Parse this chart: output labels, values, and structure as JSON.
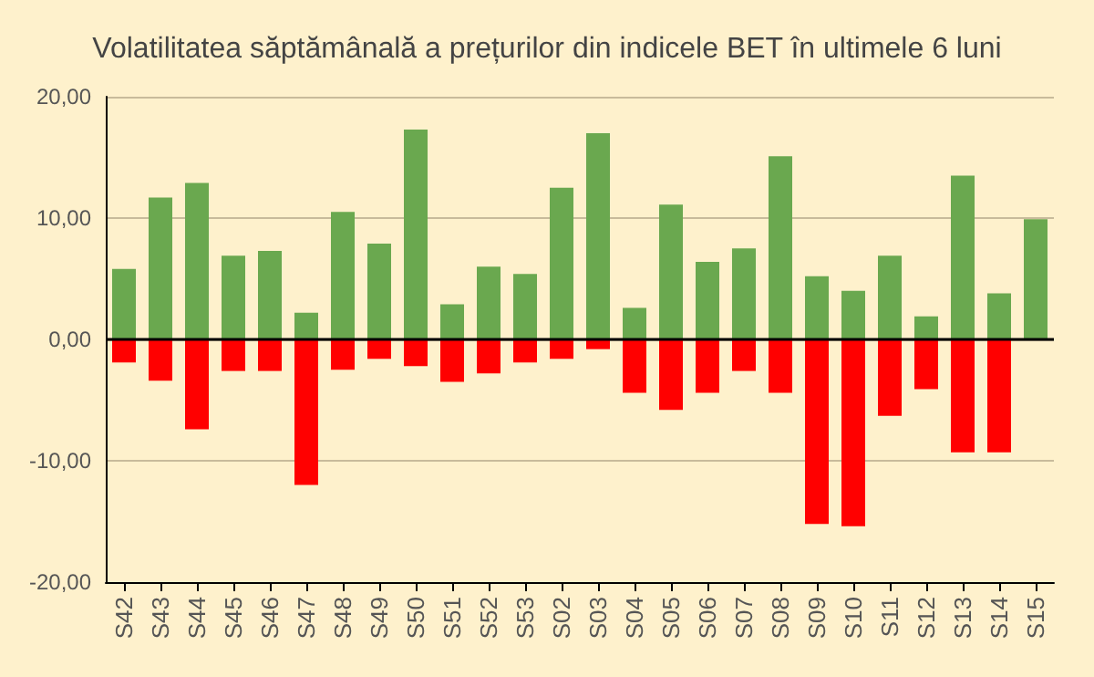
{
  "chart_data": {
    "type": "bar",
    "title": "Volatilitatea săptămânală a prețurilor din indicele BET în ultimele 6 luni",
    "categories": [
      "S42",
      "S43",
      "S44",
      "S45",
      "S46",
      "S47",
      "S48",
      "S49",
      "S50",
      "S51",
      "S52",
      "S53",
      "S02",
      "S03",
      "S04",
      "S05",
      "S06",
      "S07",
      "S08",
      "S09",
      "S10",
      "S11",
      "S12",
      "S13",
      "S14",
      "S15"
    ],
    "stacked": true,
    "series": [
      {
        "color": "#6aa84f",
        "values": [
          5.8,
          11.7,
          12.9,
          6.9,
          7.3,
          2.2,
          10.5,
          7.9,
          17.3,
          2.9,
          6.0,
          5.4,
          12.5,
          17.0,
          2.6,
          11.1,
          6.4,
          7.5,
          15.1,
          5.2,
          4.0,
          6.9,
          1.9,
          13.5,
          3.8,
          9.9
        ]
      },
      {
        "color": "#ff0000",
        "values": [
          -1.9,
          -3.4,
          -7.4,
          -2.6,
          -2.6,
          -12.0,
          -2.5,
          -1.6,
          -2.2,
          -3.5,
          -2.8,
          -1.9,
          -1.6,
          -0.8,
          -4.4,
          -5.8,
          -4.4,
          -2.6,
          -4.4,
          -15.2,
          -15.4,
          -6.3,
          -4.1,
          -9.3,
          -9.3,
          null
        ]
      }
    ],
    "ylim": [
      -20,
      20
    ],
    "yticks": [
      {
        "value": -20,
        "label": "-20,00"
      },
      {
        "value": -10,
        "label": "-10,00"
      },
      {
        "value": 0,
        "label": "0,00"
      },
      {
        "value": 10,
        "label": "10,00"
      },
      {
        "value": 20,
        "label": "20,00"
      }
    ],
    "ref_lines": [
      {
        "axis": "y",
        "value": 0,
        "color": "#000000"
      }
    ],
    "grid": "y"
  }
}
